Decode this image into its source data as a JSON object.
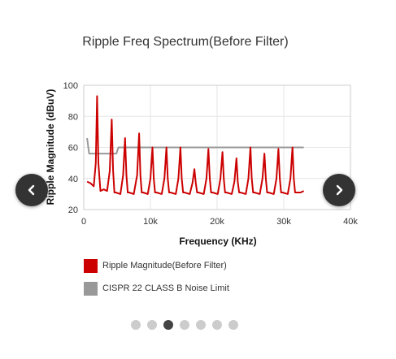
{
  "carousel": {
    "prev_icon": "chevron-left-icon",
    "next_icon": "chevron-right-icon",
    "page_count": 7,
    "active_page": 3
  },
  "chart_data": {
    "type": "line",
    "title": "Ripple Freq Spectrum(Before Filter)",
    "xlabel": "Frequency (KHz)",
    "ylabel": "Ripple Magnitude (dBuV)",
    "xlim": [
      0,
      40000
    ],
    "ylim": [
      20,
      100
    ],
    "x_ticks": [
      0,
      10000,
      20000,
      30000,
      40000
    ],
    "x_tick_labels": [
      "0",
      "10k",
      "20k",
      "30k",
      "40k"
    ],
    "y_ticks": [
      20,
      40,
      60,
      80,
      100
    ],
    "y_tick_labels": [
      "20",
      "40",
      "60",
      "80",
      "100"
    ],
    "grid": true,
    "legend_position": "bottom",
    "series": [
      {
        "name": "Ripple Magnitude(Before Filter)",
        "color": "#cc0000",
        "x": [
          500,
          1000,
          1500,
          1800,
          2000,
          2200,
          2500,
          3000,
          3500,
          3900,
          4200,
          4400,
          4600,
          4800,
          5500,
          5900,
          6200,
          6400,
          6600,
          6800,
          7500,
          8000,
          8300,
          8500,
          8700,
          8900,
          9600,
          10000,
          10300,
          10500,
          10700,
          10900,
          11700,
          12100,
          12400,
          12600,
          12800,
          13000,
          13800,
          14200,
          14500,
          14700,
          14900,
          15100,
          15900,
          16300,
          16600,
          16800,
          17000,
          17200,
          18000,
          18400,
          18700,
          18900,
          19100,
          19300,
          20100,
          20500,
          20800,
          21000,
          21200,
          21400,
          22200,
          22600,
          22900,
          23100,
          23300,
          23500,
          24300,
          24700,
          25000,
          25200,
          25400,
          25600,
          26400,
          26800,
          27100,
          27300,
          27500,
          27700,
          28500,
          28900,
          29200,
          29400,
          29600,
          29800,
          30600,
          31000,
          31300,
          31500,
          31700,
          31900,
          32500,
          33000
        ],
        "y": [
          38,
          37,
          35,
          50,
          93,
          50,
          32,
          33,
          32,
          45,
          78,
          45,
          31,
          31,
          30,
          42,
          66,
          42,
          31,
          31,
          30,
          42,
          69,
          42,
          31,
          31,
          30,
          40,
          60,
          40,
          31,
          31,
          30,
          40,
          60,
          40,
          31,
          31,
          30,
          40,
          60,
          40,
          31,
          31,
          30,
          37,
          46,
          37,
          31,
          31,
          30,
          40,
          59,
          40,
          31,
          31,
          30,
          40,
          57,
          40,
          31,
          31,
          30,
          38,
          53,
          38,
          31,
          31,
          30,
          40,
          60,
          40,
          31,
          31,
          30,
          40,
          56,
          40,
          31,
          31,
          30,
          40,
          59,
          40,
          31,
          31,
          30,
          40,
          60,
          40,
          31,
          31,
          31,
          32
        ]
      },
      {
        "name": "CISPR 22 CLASS B Noise Limit",
        "color": "#999999",
        "x": [
          500,
          800,
          4900,
          5200,
          33000
        ],
        "y": [
          66,
          56,
          56,
          60,
          60
        ]
      }
    ]
  }
}
